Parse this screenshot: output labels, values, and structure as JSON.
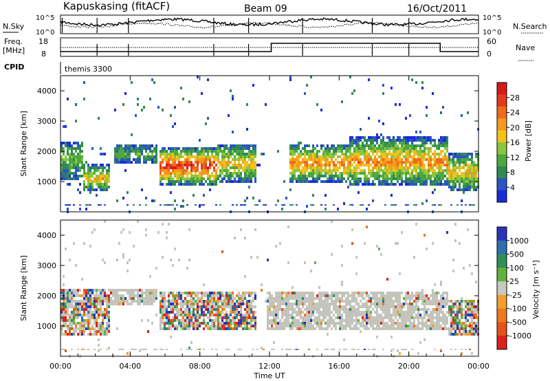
{
  "header": {
    "station": "Kapuskasing (fitACF)",
    "beam": "Beam 09",
    "date": "16/Oct/2011"
  },
  "noise_panel": {
    "left_label": "N.Sky",
    "right_label": "N.Search",
    "left_ticks": [
      "10^5",
      "10^0"
    ],
    "right_ticks": [
      "10^5",
      "10^0"
    ]
  },
  "freq_panel": {
    "left_label_line1": "Freq.",
    "left_label_line2": "[MHz]",
    "right_label": "Nave",
    "left_ticks": [
      "18",
      "8"
    ],
    "right_ticks": [
      "60",
      "0"
    ]
  },
  "cpid_panel": {
    "label": "CPID",
    "value": "themis 3300"
  },
  "colors": {
    "power_scale": [
      "#1a2bd8",
      "#2b56c2",
      "#2f8a54",
      "#4fa83f",
      "#8cc63e",
      "#f3c11a",
      "#f39a1c",
      "#ee6a1c",
      "#e33a1e",
      "#d61a18"
    ],
    "velocity_scale": [
      "#2a34b8",
      "#2e6fae",
      "#2e8f57",
      "#62b13d",
      "#c8c8c0",
      "#f0a02a",
      "#ec7a1e",
      "#e5521c",
      "#dd1f1f"
    ],
    "ground_scatter": "#c4c4bc"
  },
  "chart_data": [
    {
      "type": "heatmap",
      "name": "power-panel",
      "ylabel": "Slant Range [km]",
      "ylim": [
        0,
        4500
      ],
      "yticks": [
        1000,
        2000,
        3000,
        4000
      ],
      "xlim": [
        0,
        24
      ],
      "colorbar": {
        "label": "Power [dB]",
        "range": [
          0,
          32
        ],
        "ticks": [
          4,
          8,
          12,
          16,
          20,
          24,
          28
        ]
      },
      "regions": [
        {
          "t0": 0.0,
          "t1": 1.2,
          "r0": 1100,
          "r1": 2400,
          "level": 0.3
        },
        {
          "t0": 1.2,
          "t1": 2.8,
          "r0": 700,
          "r1": 1600,
          "level": 0.5
        },
        {
          "t0": 3.0,
          "t1": 5.5,
          "r0": 1600,
          "r1": 2300,
          "level": 0.2
        },
        {
          "t0": 5.6,
          "t1": 9.0,
          "r0": 900,
          "r1": 2200,
          "level": 0.8
        },
        {
          "t0": 9.0,
          "t1": 11.2,
          "r0": 1000,
          "r1": 2300,
          "level": 0.5
        },
        {
          "t0": 13.1,
          "t1": 16.5,
          "r0": 1000,
          "r1": 2300,
          "level": 0.6
        },
        {
          "t0": 16.5,
          "t1": 22.2,
          "r0": 900,
          "r1": 2500,
          "level": 0.6
        },
        {
          "t0": 22.2,
          "t1": 24.0,
          "r0": 700,
          "r1": 2000,
          "level": 0.5
        }
      ]
    },
    {
      "type": "heatmap",
      "name": "velocity-panel",
      "ylabel": "Slant Range [km]",
      "xlabel": "Time UT",
      "ylim": [
        0,
        4500
      ],
      "yticks": [
        1000,
        2000,
        3000,
        4000
      ],
      "xlim": [
        0,
        24
      ],
      "xticks": [
        "00:00",
        "04:00",
        "08:00",
        "12:00",
        "16:00",
        "20:00",
        "00:00"
      ],
      "colorbar": {
        "label": "Velocity [m s⁻¹]",
        "ticks": [
          "1000",
          "500",
          "100",
          "25",
          "-25",
          "-100",
          "-500",
          "-1000"
        ]
      },
      "regions": [
        {
          "t0": 0.0,
          "t1": 2.8,
          "r0": 700,
          "r1": 2300,
          "kind": "iono"
        },
        {
          "t0": 2.8,
          "t1": 5.5,
          "r0": 1700,
          "r1": 2300,
          "kind": "ground"
        },
        {
          "t0": 5.6,
          "t1": 11.2,
          "r0": 900,
          "r1": 2200,
          "kind": "iono"
        },
        {
          "t0": 11.8,
          "t1": 22.2,
          "r0": 900,
          "r1": 2200,
          "kind": "ground"
        },
        {
          "t0": 22.2,
          "t1": 24.0,
          "r0": 700,
          "r1": 1900,
          "kind": "iono"
        }
      ]
    }
  ]
}
